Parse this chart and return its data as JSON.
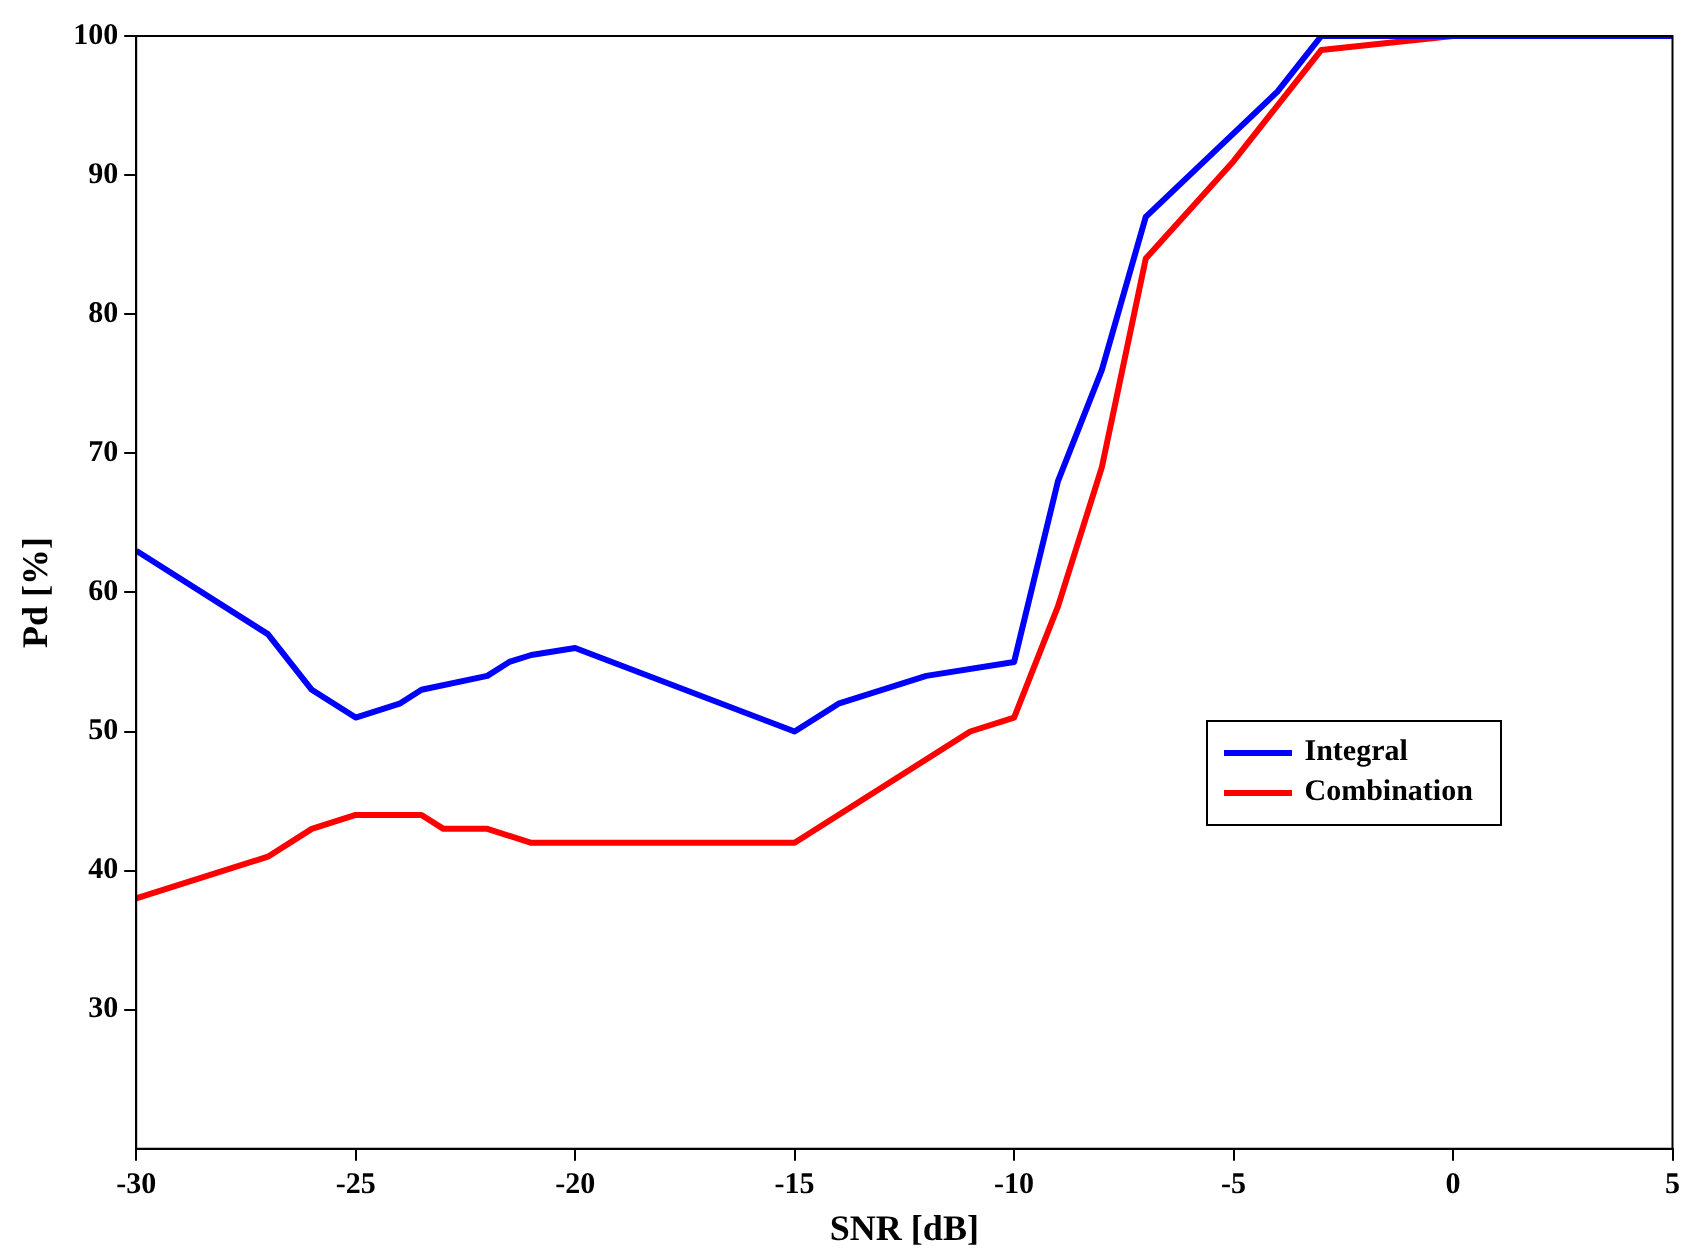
{
  "chart_data": {
    "type": "line",
    "xlabel": "SNR [dB]",
    "ylabel": "Pd [%]",
    "xlim": [
      -30,
      5
    ],
    "xticks": [
      -30,
      -25,
      -20,
      -15,
      -10,
      -5,
      0,
      5
    ],
    "ylim": [
      20,
      100
    ],
    "yticks": [
      30,
      40,
      50,
      60,
      70,
      80,
      90,
      100
    ],
    "grid": false,
    "legend": "right",
    "marker": "none",
    "line_style": "solid",
    "series": [
      {
        "name": "Integral",
        "color": "#0000ff",
        "x": [
          -30,
          -27,
          -26,
          -25,
          -24,
          -23.5,
          -22,
          -21.5,
          -21,
          -20,
          -15,
          -14,
          -12,
          -10,
          -9,
          -8,
          -7,
          -6,
          -5,
          -4,
          -3,
          0,
          5
        ],
        "values": [
          63,
          57,
          53,
          51,
          52,
          53,
          54,
          55,
          55.5,
          56,
          50,
          52,
          54,
          55,
          68,
          76,
          87,
          90,
          93,
          96,
          100,
          100,
          100
        ]
      },
      {
        "name": "Combination",
        "color": "#ff0000",
        "x": [
          -30,
          -27,
          -26,
          -25,
          -23.5,
          -23,
          -22,
          -21,
          -15,
          -11,
          -10,
          -9,
          -8,
          -7,
          -5,
          -3,
          0
        ],
        "values": [
          38,
          41,
          43,
          44,
          44,
          43,
          43,
          42,
          42,
          50,
          51,
          59,
          69,
          84,
          91,
          99,
          100
        ]
      }
    ]
  }
}
